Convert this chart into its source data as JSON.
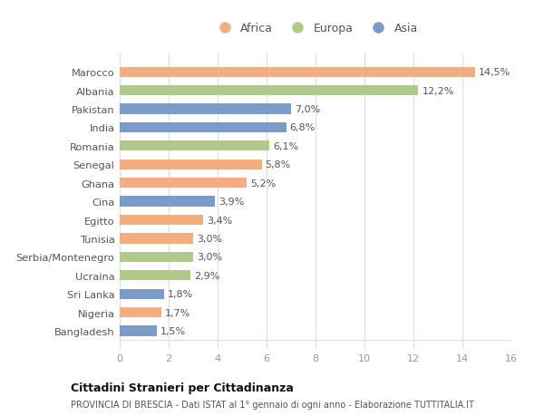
{
  "categories": [
    "Bangladesh",
    "Nigeria",
    "Sri Lanka",
    "Ucraina",
    "Serbia/Montenegro",
    "Tunisia",
    "Egitto",
    "Cina",
    "Ghana",
    "Senegal",
    "Romania",
    "India",
    "Pakistan",
    "Albania",
    "Marocco"
  ],
  "values": [
    1.5,
    1.7,
    1.8,
    2.9,
    3.0,
    3.0,
    3.4,
    3.9,
    5.2,
    5.8,
    6.1,
    6.8,
    7.0,
    12.2,
    14.5
  ],
  "continent": [
    "Asia",
    "Africa",
    "Asia",
    "Europa",
    "Europa",
    "Africa",
    "Africa",
    "Asia",
    "Africa",
    "Africa",
    "Europa",
    "Asia",
    "Asia",
    "Europa",
    "Africa"
  ],
  "colors": {
    "Africa": "#F2AE7E",
    "Europa": "#B0C88A",
    "Asia": "#7B9BC8"
  },
  "legend_labels": [
    "Africa",
    "Europa",
    "Asia"
  ],
  "legend_colors": [
    "#F2AE7E",
    "#B0C88A",
    "#7B9BC8"
  ],
  "xlim": [
    0,
    16
  ],
  "xticks": [
    0,
    2,
    4,
    6,
    8,
    10,
    12,
    14,
    16
  ],
  "title": "Cittadini Stranieri per Cittadinanza",
  "subtitle": "PROVINCIA DI BRESCIA - Dati ISTAT al 1° gennaio di ogni anno - Elaborazione TUTTITALIA.IT",
  "bar_height": 0.55,
  "figsize": [
    6.0,
    4.6
  ],
  "dpi": 100,
  "bg_color": "#ffffff",
  "grid_color": "#dddddd",
  "label_color": "#555555",
  "value_label_color": "#555555"
}
